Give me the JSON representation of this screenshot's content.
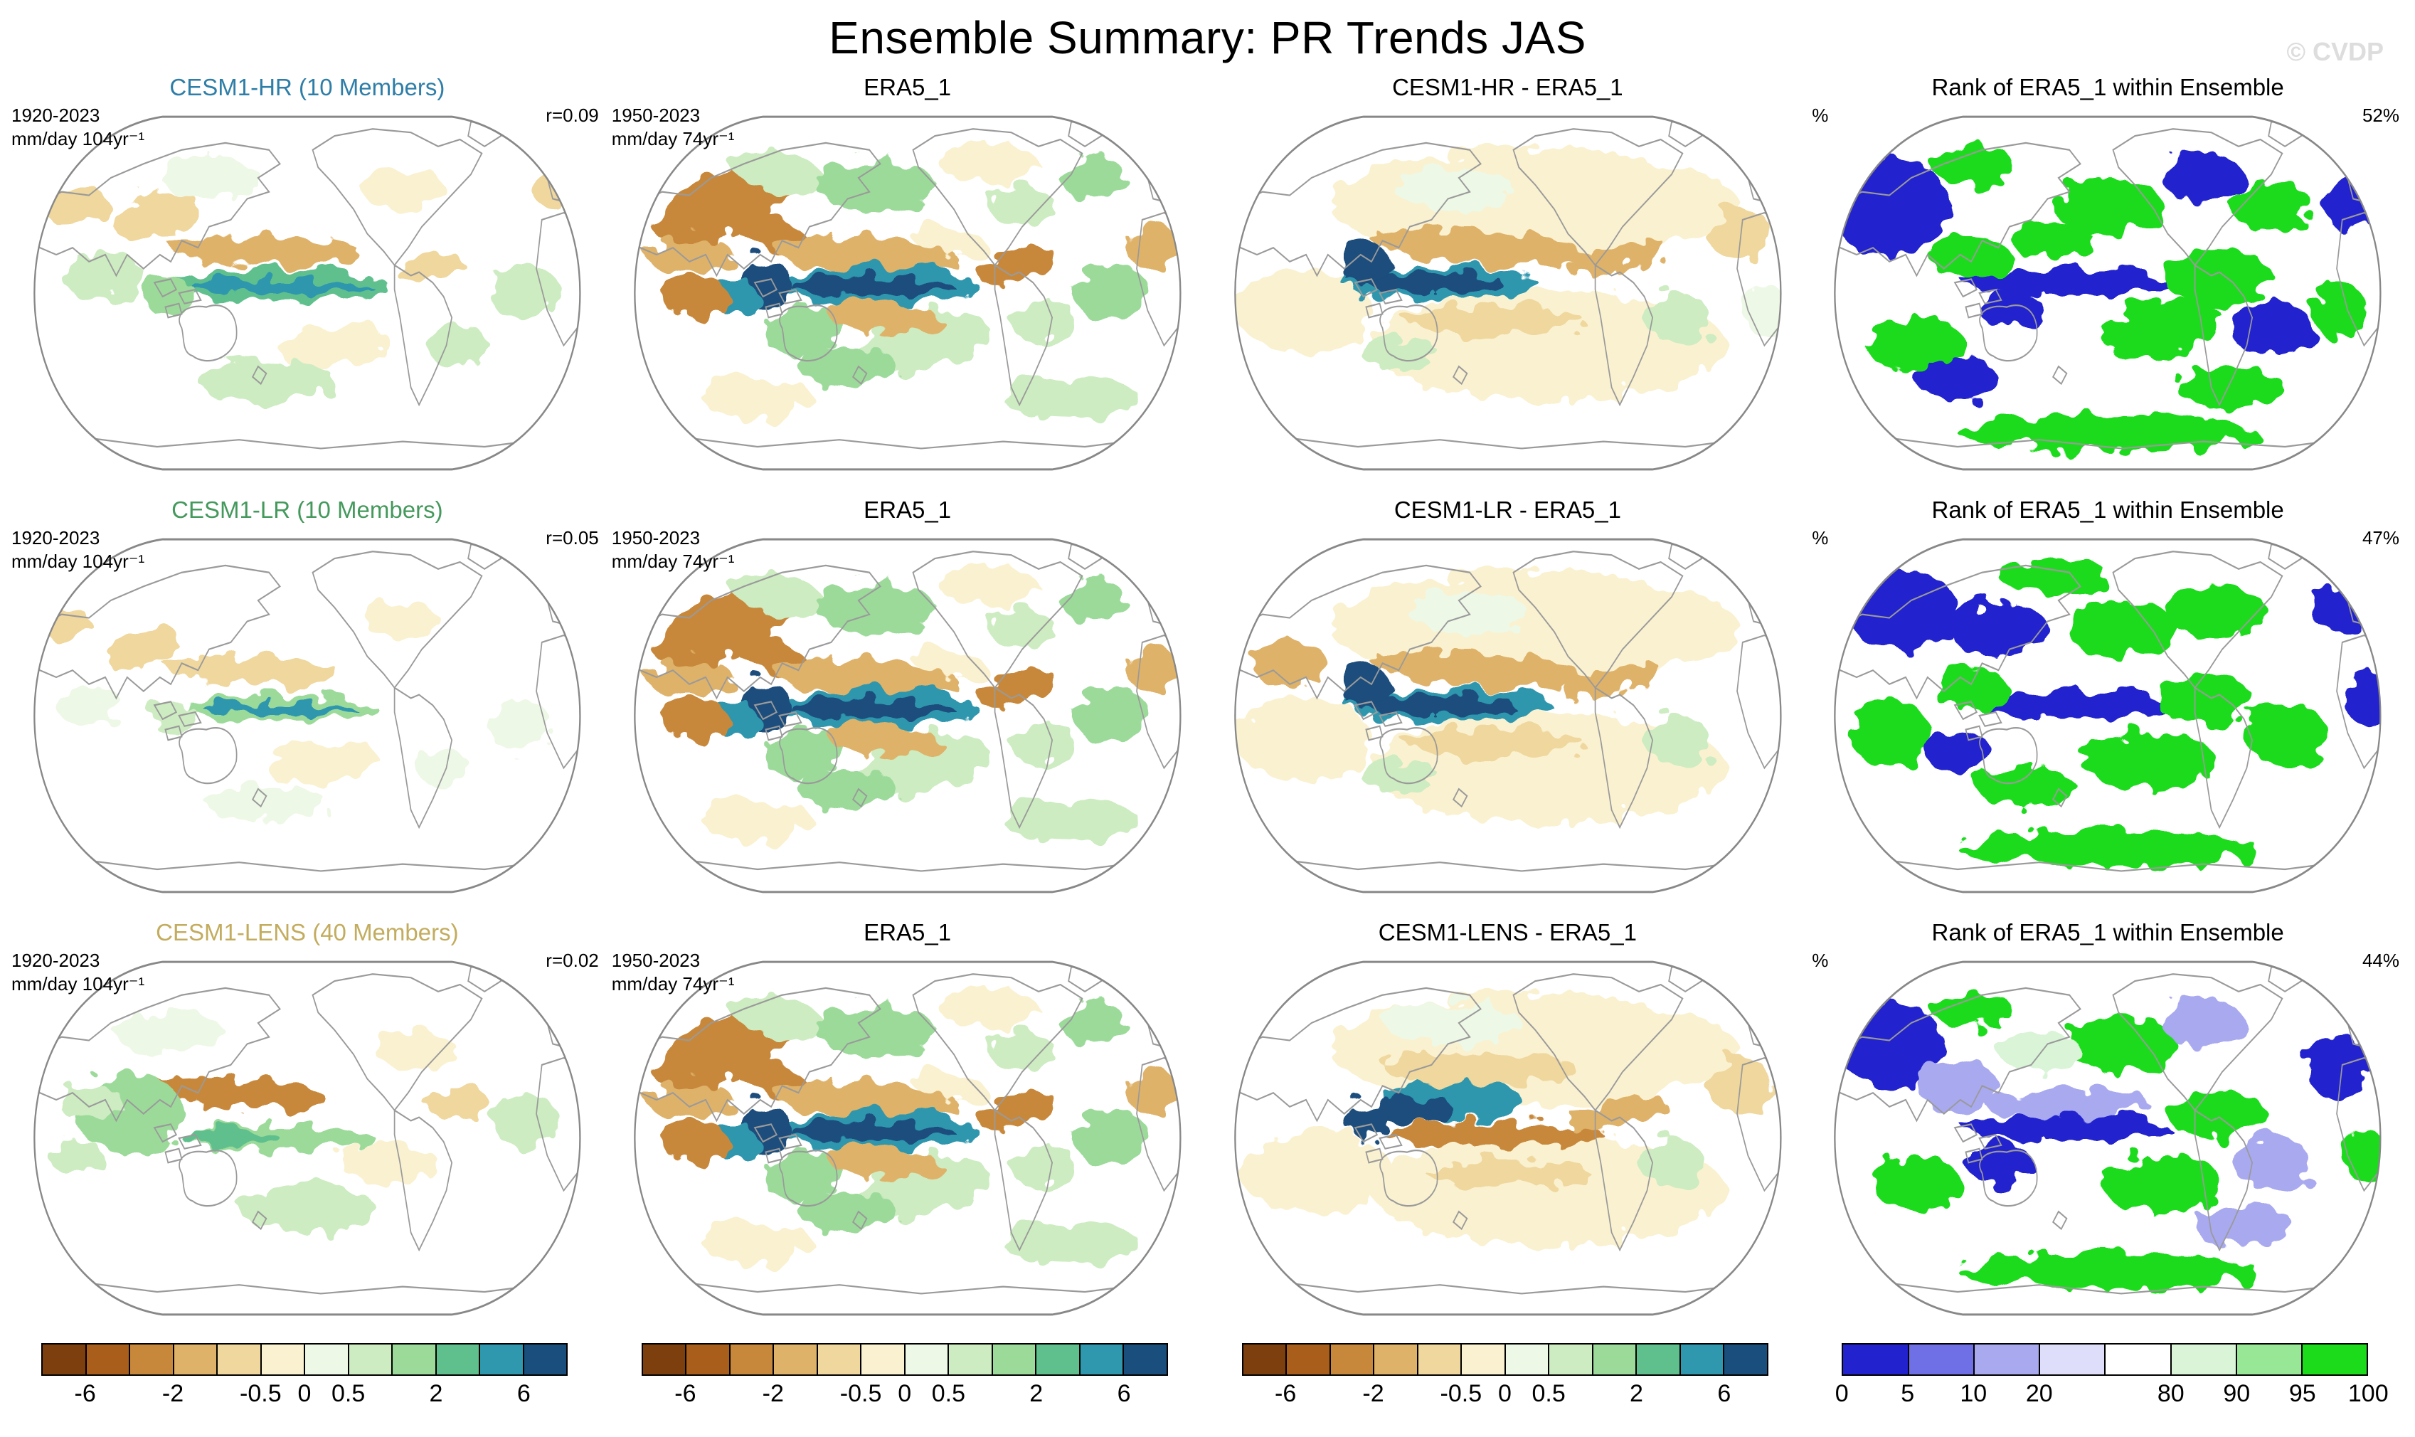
{
  "header": {
    "title": "Ensemble Summary: PR Trends JAS",
    "watermark": "© CVDP"
  },
  "palette": {
    "trend": [
      "#7d3f0e",
      "#a95f1b",
      "#c8883b",
      "#dfb269",
      "#efd79d",
      "#faf1d0",
      "#eef8e6",
      "#cdecc1",
      "#9cda9a",
      "#5fc08d",
      "#2f97ae",
      "#1a4e7c"
    ],
    "rank": [
      "#2222cf",
      "#6f6fe6",
      "#a9a9f0",
      "#dedefa",
      "#ffffff",
      "#d9f4d6",
      "#97e797",
      "#1bdb1b"
    ]
  },
  "rows": [
    {
      "panels": [
        {
          "title": "CESM1-HR (10 Members)",
          "title_color": "#2e7ea8",
          "tl1": "1920-2023",
          "tl2": "mm/day 104yr⁻¹",
          "tr": "r=0.09"
        },
        {
          "title": "ERA5_1",
          "title_color": "#000000",
          "tl1": "1950-2023",
          "tl2": "mm/day 74yr⁻¹",
          "tr": ""
        },
        {
          "title": "CESM1-HR - ERA5_1",
          "title_color": "#000000",
          "tl1": "",
          "tl2": "",
          "tr": ""
        },
        {
          "title": "Rank of ERA5_1 within Ensemble",
          "title_color": "#000000",
          "tl1": "%",
          "tl2": "",
          "tr": "52%"
        }
      ]
    },
    {
      "panels": [
        {
          "title": "CESM1-LR (10 Members)",
          "title_color": "#44995c",
          "tl1": "1920-2023",
          "tl2": "mm/day 104yr⁻¹",
          "tr": "r=0.05"
        },
        {
          "title": "ERA5_1",
          "title_color": "#000000",
          "tl1": "1950-2023",
          "tl2": "mm/day 74yr⁻¹",
          "tr": ""
        },
        {
          "title": "CESM1-LR - ERA5_1",
          "title_color": "#000000",
          "tl1": "",
          "tl2": "",
          "tr": ""
        },
        {
          "title": "Rank of ERA5_1 within Ensemble",
          "title_color": "#000000",
          "tl1": "%",
          "tl2": "",
          "tr": "47%"
        }
      ]
    },
    {
      "panels": [
        {
          "title": "CESM1-LENS (40 Members)",
          "title_color": "#c3ac5e",
          "tl1": "1920-2023",
          "tl2": "mm/day 104yr⁻¹",
          "tr": "r=0.02"
        },
        {
          "title": "ERA5_1",
          "title_color": "#000000",
          "tl1": "1950-2023",
          "tl2": "mm/day 74yr⁻¹",
          "tr": ""
        },
        {
          "title": "CESM1-LENS - ERA5_1",
          "title_color": "#000000",
          "tl1": "",
          "tl2": "",
          "tr": ""
        },
        {
          "title": "Rank of ERA5_1 within Ensemble",
          "title_color": "#000000",
          "tl1": "%",
          "tl2": "",
          "tr": "44%"
        }
      ]
    }
  ],
  "colorbars": {
    "trend": {
      "colors": [
        "#7d3f0e",
        "#a95f1b",
        "#c8883b",
        "#dfb269",
        "#efd79d",
        "#faf1d0",
        "#eef8e6",
        "#cdecc1",
        "#9cda9a",
        "#5fc08d",
        "#2f97ae",
        "#1a4e7c"
      ],
      "ticks": [
        {
          "label": "-6",
          "pos": 0.0833
        },
        {
          "label": "-2",
          "pos": 0.25
        },
        {
          "label": "-0.5",
          "pos": 0.4167
        },
        {
          "label": "0",
          "pos": 0.5
        },
        {
          "label": "0.5",
          "pos": 0.5833
        },
        {
          "label": "2",
          "pos": 0.75
        },
        {
          "label": "6",
          "pos": 0.9167
        }
      ]
    },
    "rank": {
      "colors": [
        "#2222cf",
        "#6f6fe6",
        "#a9a9f0",
        "#dedefa",
        "#ffffff",
        "#d9f4d6",
        "#97e797",
        "#1bdb1b"
      ],
      "ticks": [
        {
          "label": "0",
          "pos": 0
        },
        {
          "label": "5",
          "pos": 0.125
        },
        {
          "label": "10",
          "pos": 0.25
        },
        {
          "label": "20",
          "pos": 0.375
        },
        {
          "label": "80",
          "pos": 0.625
        },
        {
          "label": "90",
          "pos": 0.75
        },
        {
          "label": "95",
          "pos": 0.875
        },
        {
          "label": "100",
          "pos": 1
        }
      ]
    }
  },
  "chart_data": {
    "type": "heatmap",
    "title": "Ensemble Summary: PR Trends JAS",
    "layout": "3 rows x 4 columns of global Robinson-projection maps; columns: ensemble-mean model trend, ERA5_1 observed trend, model-minus-ERA5_1 difference, rank of ERA5_1 within ensemble",
    "rows": [
      {
        "model": "CESM1-HR",
        "members": 10,
        "model_period": "1920-2023",
        "model_units": "mm/day 104yr⁻¹",
        "obs": "ERA5_1",
        "obs_period": "1950-2023",
        "obs_units": "mm/day 74yr⁻¹",
        "difference_panel": "CESM1-HR - ERA5_1",
        "rank_panel": "Rank of ERA5_1 within Ensemble",
        "pattern_correlation_r": 0.09,
        "rank_percent": 52
      },
      {
        "model": "CESM1-LR",
        "members": 10,
        "model_period": "1920-2023",
        "model_units": "mm/day 104yr⁻¹",
        "obs": "ERA5_1",
        "obs_period": "1950-2023",
        "obs_units": "mm/day 74yr⁻¹",
        "difference_panel": "CESM1-LR - ERA5_1",
        "rank_panel": "Rank of ERA5_1 within Ensemble",
        "pattern_correlation_r": 0.05,
        "rank_percent": 47
      },
      {
        "model": "CESM1-LENS",
        "members": 40,
        "model_period": "1920-2023",
        "model_units": "mm/day 104yr⁻¹",
        "obs": "ERA5_1",
        "obs_period": "1950-2023",
        "obs_units": "mm/day 74yr⁻¹",
        "difference_panel": "CESM1-LENS - ERA5_1",
        "rank_panel": "Rank of ERA5_1 within Ensemble",
        "pattern_correlation_r": 0.02,
        "rank_percent": 44
      }
    ],
    "trend_colorbar_tick_values": [
      -6,
      -2,
      -0.5,
      0,
      0.5,
      2,
      6
    ],
    "trend_colorbar_units": "mm/day per period",
    "rank_colorbar_tick_values": [
      0,
      5,
      10,
      20,
      80,
      90,
      95,
      100
    ],
    "rank_colorbar_units": "%",
    "legend_position": "bottom",
    "grid": false
  }
}
